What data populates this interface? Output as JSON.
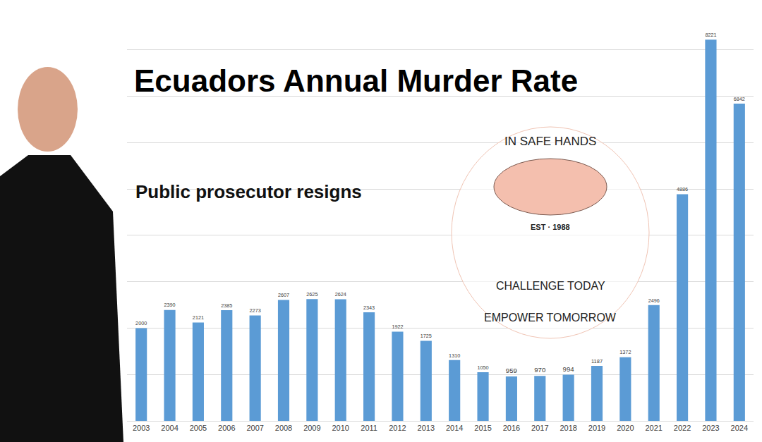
{
  "chart_data": {
    "type": "bar",
    "title": "Ecuadors Annual Murder Rate",
    "categories": [
      "2003",
      "2004",
      "2005",
      "2006",
      "2007",
      "2008",
      "2009",
      "2010",
      "2011",
      "2012",
      "2013",
      "2014",
      "2015",
      "2016",
      "2017",
      "2018",
      "2019",
      "2020",
      "2021",
      "2022",
      "2023",
      "2024"
    ],
    "values": [
      2000,
      2390,
      2121,
      2385,
      2273,
      2607,
      2625,
      2624,
      2343,
      1922,
      1725,
      1310,
      1050,
      959,
      970,
      994,
      1187,
      1372,
      2496,
      4886,
      8221,
      6842
    ],
    "color": "#5b9bd5",
    "ylim": [
      0,
      9000
    ],
    "yticks": [
      0,
      1000,
      2000,
      3000,
      4000,
      5000,
      6000,
      7000,
      8000,
      9000
    ],
    "grid": true,
    "data_labels": true,
    "tick_labels": "x",
    "annotations": [
      "Public prosecutor resigns",
      "IN SAFE HANDS",
      "EST · 1988",
      "CHALLENGE TODAY",
      "EMPOWER TOMORROW"
    ]
  }
}
